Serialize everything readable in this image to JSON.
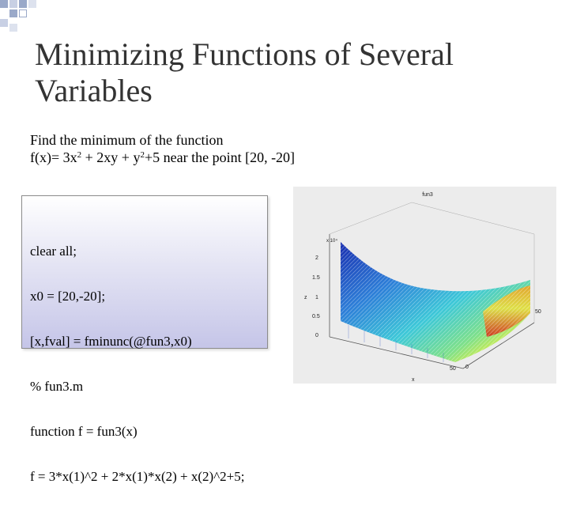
{
  "slide": {
    "title": "Minimizing Functions of Several Variables",
    "intro_line": "Find the minimum of the function",
    "function_line": {
      "prefix": "f(x)= 3x",
      "exp1": "2",
      "middle": " + 2xy + y",
      "exp2": "2",
      "suffix": "+5 near the point [20, -20]"
    },
    "code_lines": [
      "clear all;",
      "x0 = [20,-20];",
      "[x,fval] = fminunc(@fun3,x0)",
      "% fun3.m",
      "function f = fun3(x)",
      "f = 3*x(1)^2 + 2*x(1)*x(2) + x(2)^2+5;"
    ]
  },
  "plot": {
    "title": "fun3",
    "exponent_label": "x 10⁴",
    "z_ticks": [
      "2",
      "1.5",
      "1",
      "0.5",
      "0"
    ],
    "z_label": "z",
    "x_ticks": [
      "50",
      "0"
    ],
    "x_label": "x",
    "y_tick": "50",
    "colors": {
      "low": "#1a2fb0",
      "mid": "#2bbfd6",
      "high": "#e8f040",
      "peak": "#d42a1a",
      "background": "#ececec"
    }
  }
}
